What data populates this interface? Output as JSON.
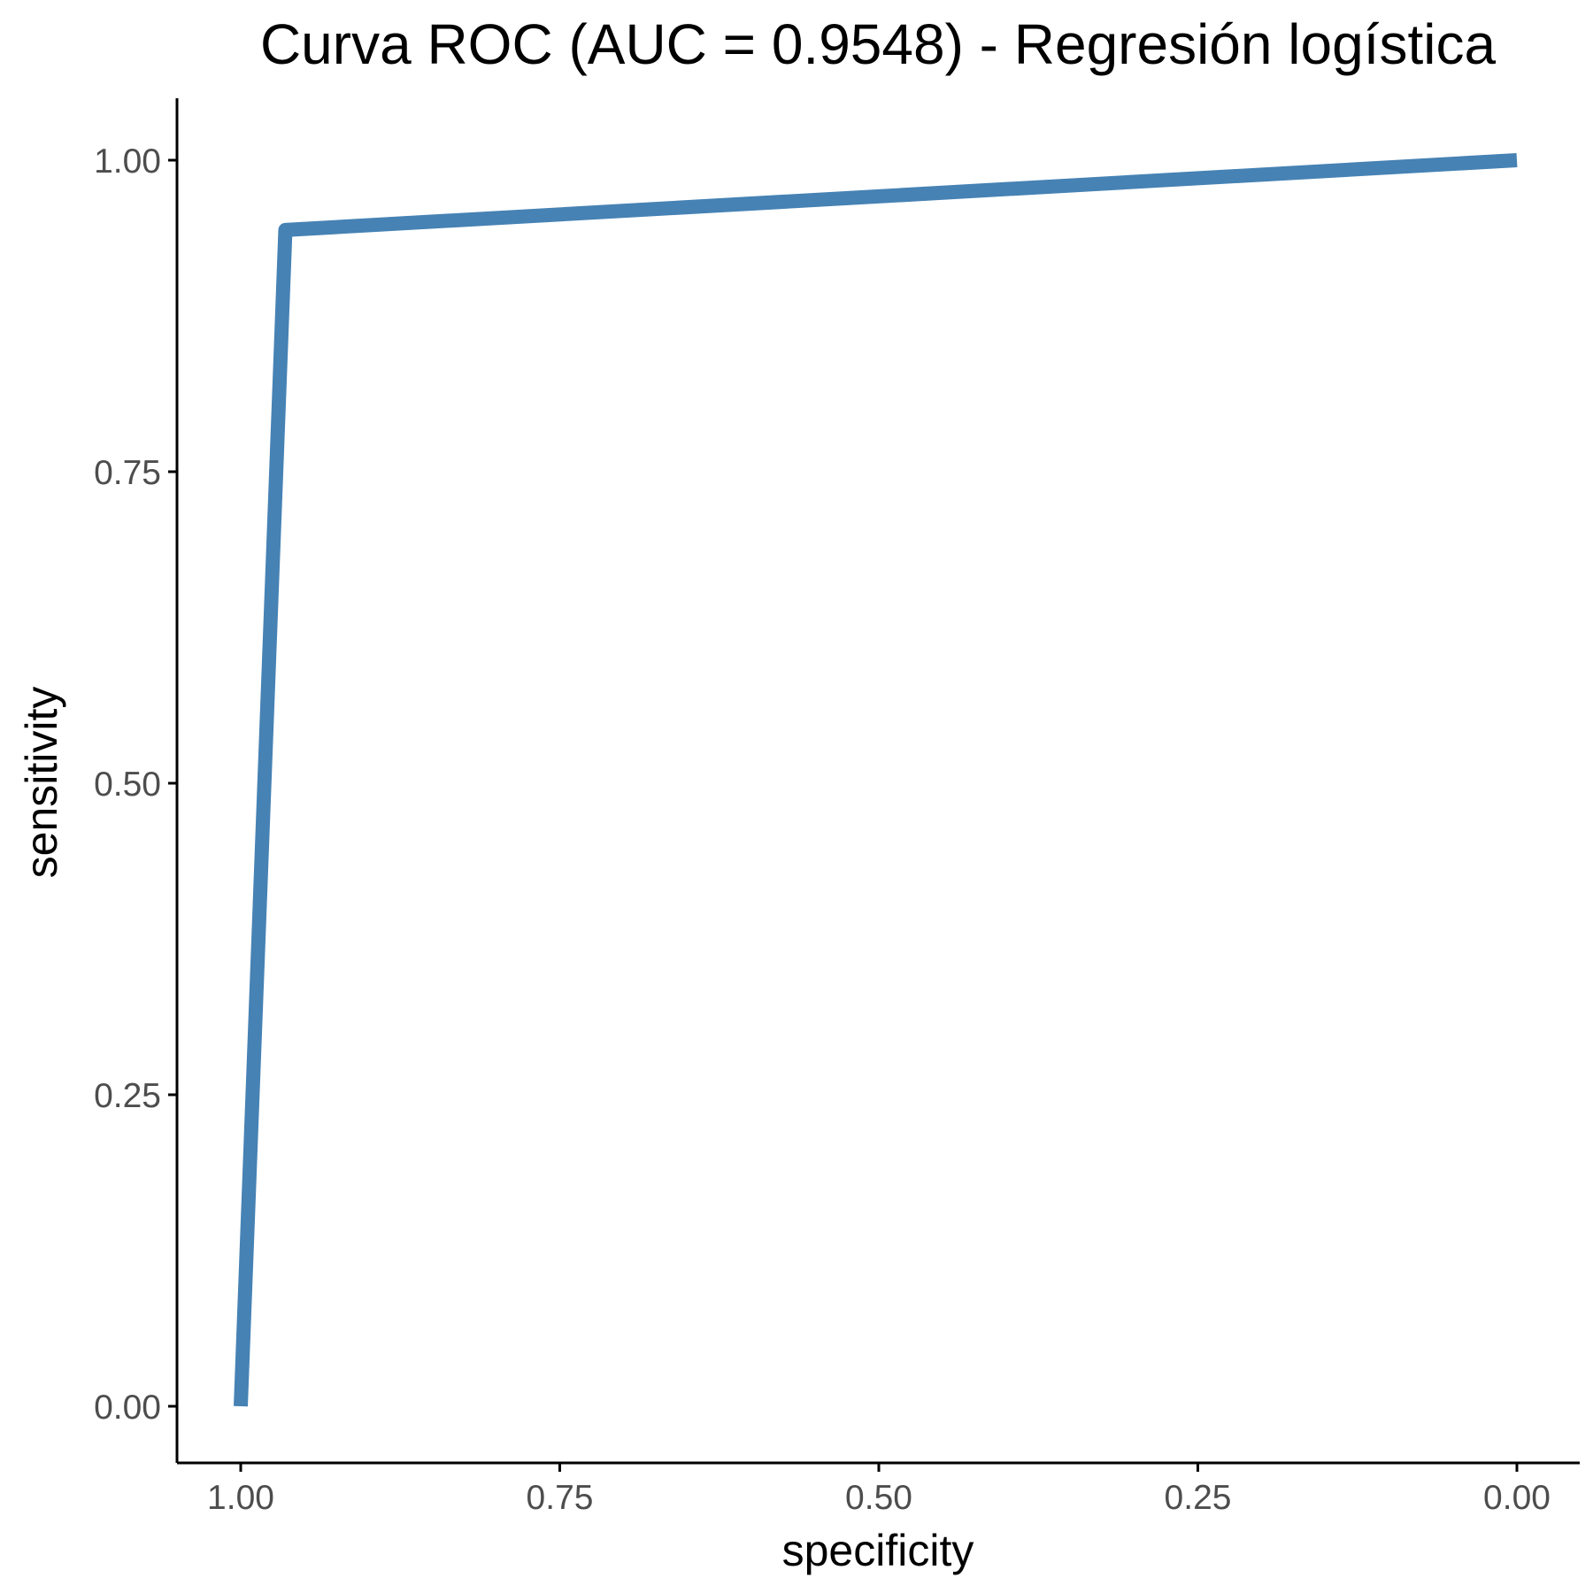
{
  "chart_data": {
    "type": "line",
    "title": "Curva ROC (AUC = 0.9548) - Regresión logística",
    "xlabel": "specificity",
    "ylabel": "sensitivity",
    "xlim": [
      1.0,
      0.0
    ],
    "ylim": [
      0.0,
      1.0
    ],
    "x_reversed": true,
    "x_ticks": [
      "1.00",
      "0.75",
      "0.50",
      "0.25",
      "0.00"
    ],
    "y_ticks": [
      "0.00",
      "0.25",
      "0.50",
      "0.75",
      "1.00"
    ],
    "grid": false,
    "series": [
      {
        "color": "#4682b4",
        "points": [
          {
            "x": 1.0,
            "y": 0.0
          },
          {
            "x": 0.965,
            "y": 0.944
          },
          {
            "x": 0.0,
            "y": 1.0
          }
        ]
      }
    ]
  }
}
